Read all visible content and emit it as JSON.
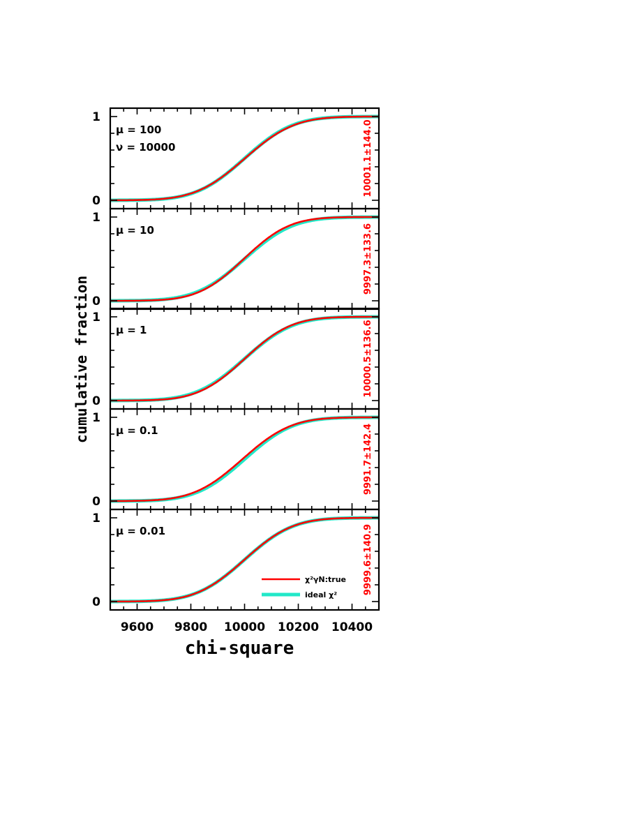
{
  "chart_data": {
    "type": "line",
    "xlabel": "chi-square",
    "ylabel": "cumulative fraction",
    "xlim": [
      9500,
      10500
    ],
    "ylim": [
      0,
      1
    ],
    "xticks": [
      9600,
      9800,
      10000,
      10200,
      10400
    ],
    "yticks": [
      0,
      1
    ],
    "legend": {
      "placement": "bottom-right of bottom panel",
      "entries": [
        {
          "label": "χ²γN:true",
          "color": "#ff0000"
        },
        {
          "label": "ideal χ²",
          "color": "#22e8c8"
        }
      ]
    },
    "panels": [
      {
        "params": [
          "μ = 100",
          "ν = 10000"
        ],
        "stat": "10001.1±144.0",
        "series": [
          {
            "name": "χ²γN:true",
            "mean": 10001.1,
            "sd": 144.0
          },
          {
            "name": "ideal χ²",
            "mean": 10000,
            "sd": 141.4
          }
        ]
      },
      {
        "params": [
          "μ = 10"
        ],
        "stat": "9997.3±133.6",
        "series": [
          {
            "name": "χ²γN:true",
            "mean": 9997.3,
            "sd": 133.6
          },
          {
            "name": "ideal χ²",
            "mean": 10000,
            "sd": 141.4
          }
        ]
      },
      {
        "params": [
          "μ = 1"
        ],
        "stat": "10000.5±136.6",
        "series": [
          {
            "name": "χ²γN:true",
            "mean": 10000.5,
            "sd": 136.6
          },
          {
            "name": "ideal χ²",
            "mean": 10000,
            "sd": 141.4
          }
        ]
      },
      {
        "params": [
          "μ = 0.1"
        ],
        "stat": "9991.7±142.4",
        "series": [
          {
            "name": "χ²γN:true",
            "mean": 9991.7,
            "sd": 142.4
          },
          {
            "name": "ideal χ²",
            "mean": 10000,
            "sd": 141.4
          }
        ]
      },
      {
        "params": [
          "μ = 0.01"
        ],
        "stat": "9999.6±140.9",
        "series": [
          {
            "name": "χ²γN:true",
            "mean": 9999.6,
            "sd": 140.9
          },
          {
            "name": "ideal χ²",
            "mean": 10000,
            "sd": 141.4
          }
        ]
      }
    ],
    "colors": {
      "true": "#ff0000",
      "ideal": "#22e8c8",
      "axis": "#000000"
    }
  }
}
